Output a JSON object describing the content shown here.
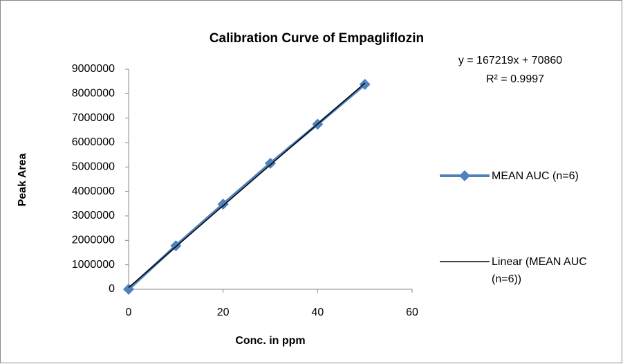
{
  "chart_data": {
    "type": "line",
    "title": "Calibration Curve of Empagliflozin",
    "x_label": "Conc. in ppm",
    "y_label": "Peak Area",
    "x": [
      0,
      10,
      20,
      30,
      40,
      50
    ],
    "series": [
      {
        "name": "MEAN AUC (n=6)",
        "color": "#4f81bd",
        "marker": "diamond",
        "values": [
          0,
          1780000,
          3480000,
          5150000,
          6750000,
          8380000
        ]
      },
      {
        "name": "Linear (MEAN AUC (n=6))",
        "color": "#000000",
        "marker": "none",
        "values": [
          70860,
          1743050,
          3415240,
          5087430,
          6759620,
          8431810
        ]
      }
    ],
    "annotations": [
      "y = 167219x + 70860",
      "R² = 0.9997"
    ],
    "xlim": [
      0,
      60
    ],
    "xticks": [
      0,
      20,
      40,
      60
    ],
    "ylim": [
      0,
      9000000
    ],
    "yticks": [
      0,
      1000000,
      2000000,
      3000000,
      4000000,
      5000000,
      6000000,
      7000000,
      8000000,
      9000000
    ],
    "legend": "right"
  }
}
